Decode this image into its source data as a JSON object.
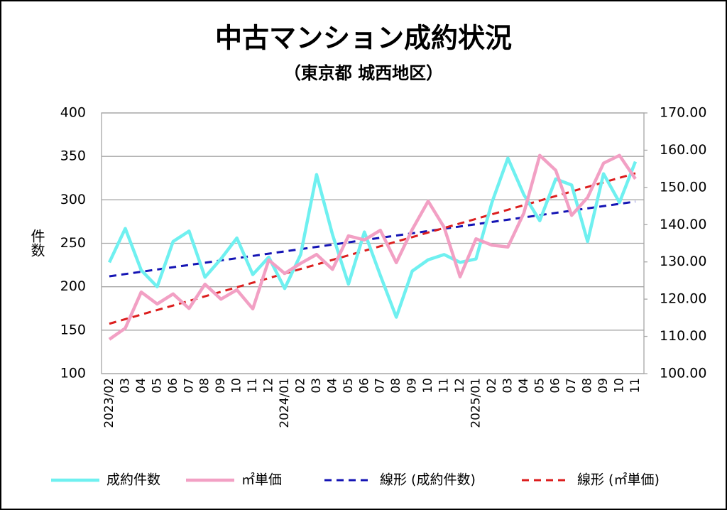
{
  "chart_data": {
    "type": "line",
    "title": "中古マンション成約状況",
    "subtitle": "（東京都 城西地区）",
    "y_label": "件数",
    "categories": [
      "2023/02",
      "03",
      "04",
      "05",
      "06",
      "07",
      "08",
      "09",
      "10",
      "11",
      "12",
      "2024/01",
      "02",
      "03",
      "04",
      "05",
      "06",
      "07",
      "08",
      "09",
      "10",
      "11",
      "12",
      "2025/01",
      "02",
      "03",
      "04",
      "05",
      "06",
      "07",
      "08",
      "09",
      "10",
      "11"
    ],
    "series": [
      {
        "name": "成約件数",
        "color": "#6ff0f0",
        "axis": "y",
        "values": [
          228,
          267,
          219,
          200,
          252,
          264,
          211,
          232,
          256,
          214,
          234,
          198,
          237,
          329,
          260,
          203,
          263,
          213,
          165,
          218,
          231,
          237,
          228,
          232,
          297,
          348,
          306,
          276,
          324,
          317,
          252,
          330,
          297,
          344
        ]
      },
      {
        "name": "㎡単価",
        "color": "#f2a0c4",
        "axis": "y2",
        "values": [
          109.2,
          112.2,
          121.9,
          118.7,
          121.4,
          117.5,
          124.0,
          120.0,
          122.5,
          117.4,
          130.5,
          126.9,
          129.6,
          132.0,
          128.0,
          137.0,
          135.9,
          138.5,
          129.8,
          138.7,
          146.3,
          139.3,
          126.0,
          136.2,
          134.5,
          134.0,
          143.1,
          158.6,
          154.6,
          142.5,
          147.3,
          156.5,
          158.6,
          152.3
        ]
      }
    ],
    "trendlines": [
      {
        "name": "線形 (成約件数)",
        "color": "#1414b4",
        "axis": "y",
        "values": [
          212,
          298
        ]
      },
      {
        "name": "線形 (㎡単価)",
        "color": "#dc1e1e",
        "axis": "y2",
        "values": [
          113.4,
          153.8
        ]
      }
    ],
    "ylim": [
      100,
      400
    ],
    "yticks": [
      100,
      150,
      200,
      250,
      300,
      350,
      400
    ],
    "y2lim": [
      100,
      170
    ],
    "y2ticks": [
      {
        "value": 100,
        "label": "100.00"
      },
      {
        "value": 110,
        "label": "110.00"
      },
      {
        "value": 120,
        "label": "120.00"
      },
      {
        "value": 130,
        "label": "130.00"
      },
      {
        "value": 140,
        "label": "140.00"
      },
      {
        "value": 150,
        "label": "150.00"
      },
      {
        "value": 160,
        "label": "160.00"
      },
      {
        "value": 170,
        "label": "170.00"
      }
    ],
    "grid": true,
    "legend": "bottom"
  }
}
